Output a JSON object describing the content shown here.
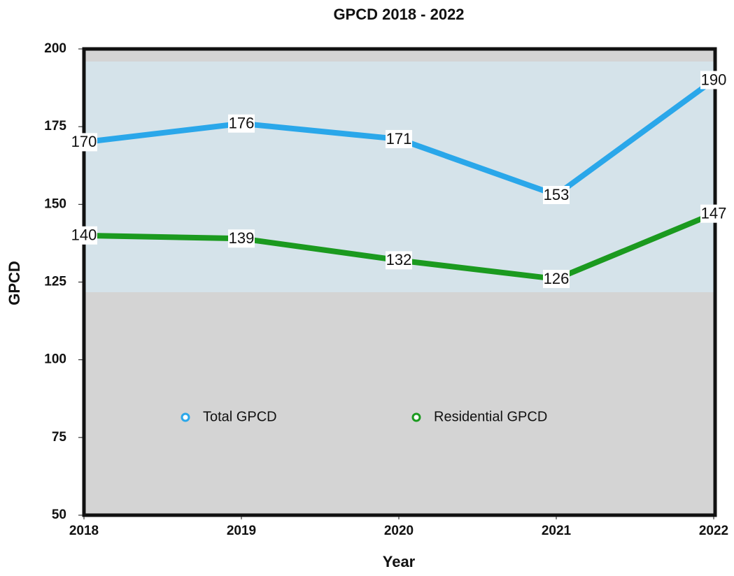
{
  "chart_data": {
    "type": "line",
    "title": "GPCD 2018 - 2022",
    "x_label": "Year",
    "y_label": "GPCD",
    "x": [
      2018,
      2019,
      2020,
      2021,
      2022
    ],
    "xlim": [
      2018,
      2022
    ],
    "xticks": [
      2018,
      2019,
      2020,
      2021,
      2022
    ],
    "ylim": [
      50,
      200
    ],
    "yticks": [
      50,
      75,
      100,
      125,
      150,
      175,
      200
    ],
    "legend": "bottom",
    "series": [
      {
        "name": "Total GPCD",
        "color": "#2aa7ea",
        "values": [
          170,
          176,
          171,
          153,
          190
        ]
      },
      {
        "name": "Residential GPCD",
        "color": "#1b9a1f",
        "values": [
          140,
          139,
          132,
          126,
          147
        ]
      }
    ]
  }
}
